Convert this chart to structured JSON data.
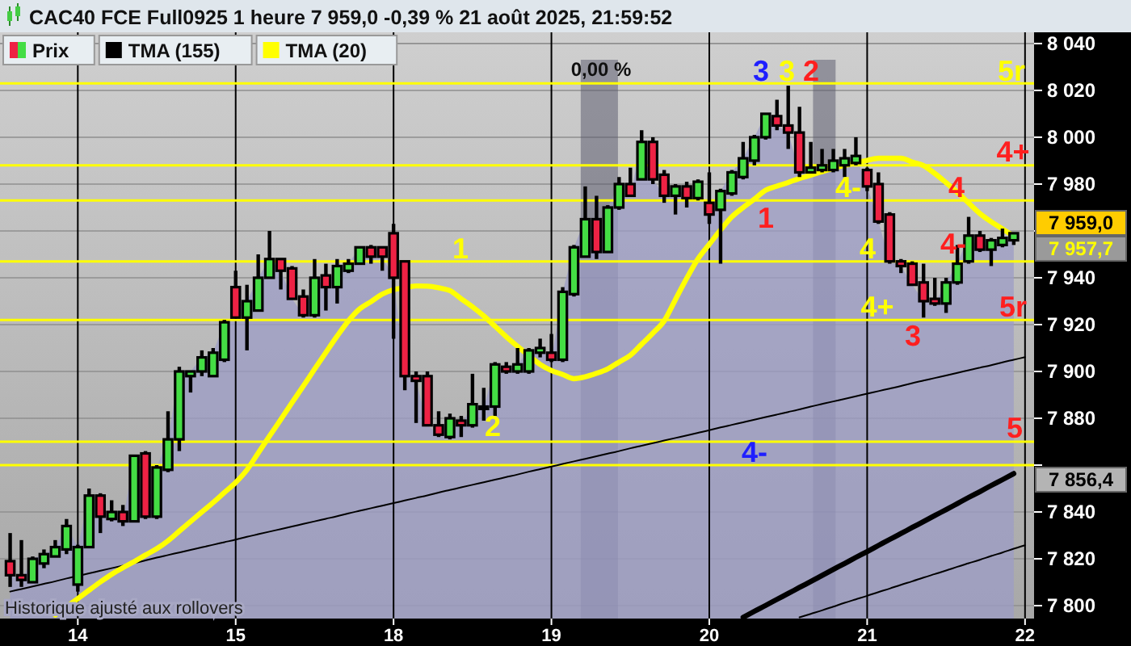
{
  "chart_data": {
    "type": "candlestick",
    "title": "CAC40 FCE Full0925 1 heure 7 959,0 -0,39 % 21 août 2025, 21:59:52",
    "categories": [
      null,
      null,
      null,
      null,
      null,
      null,
      "14",
      null,
      null,
      null,
      null,
      null,
      null,
      null,
      null,
      null,
      null,
      null,
      null,
      null,
      "15",
      null,
      null,
      null,
      null,
      null,
      null,
      null,
      null,
      null,
      null,
      null,
      null,
      null,
      "18",
      null,
      null,
      null,
      null,
      null,
      null,
      null,
      null,
      null,
      null,
      null,
      null,
      null,
      "19",
      null,
      null,
      null,
      null,
      null,
      null,
      null,
      null,
      null,
      null,
      null,
      null,
      null,
      "20",
      null,
      null,
      null,
      null,
      null,
      null,
      null,
      null,
      null,
      null,
      null,
      null,
      null,
      "21",
      null,
      null,
      null,
      null,
      null,
      null,
      null,
      null,
      null,
      null,
      null,
      null,
      null,
      "22"
    ],
    "ylim": [
      7794.5,
      8044.8
    ],
    "yticks": [
      {
        "value": 7800,
        "label": "7 800"
      },
      {
        "value": 7820,
        "label": "7 820"
      },
      {
        "value": 7840,
        "label": "7 840"
      },
      {
        "value": 7860,
        "label": null
      },
      {
        "value": 7880,
        "label": "7 880"
      },
      {
        "value": 7900,
        "label": "7 900"
      },
      {
        "value": 7920,
        "label": "7 920"
      },
      {
        "value": 7940,
        "label": "7 940"
      },
      {
        "value": 7960,
        "label": null
      },
      {
        "value": 7980,
        "label": "7 980"
      },
      {
        "value": 8000,
        "label": "8 000"
      },
      {
        "value": 8020,
        "label": "8 020"
      },
      {
        "value": 8040,
        "label": "8 040"
      }
    ],
    "grid": true,
    "legend": "top left",
    "series": [
      {
        "type": "area",
        "color": "#9c9cc6",
        "values": [
          7813,
          7811,
          7820,
          7822,
          7825,
          7834,
          7825,
          7847,
          7838,
          7840,
          7836,
          7864,
          7838,
          7859,
          7871,
          7900,
          7900,
          7906,
          7908,
          7921,
          7923,
          7930,
          7940,
          7948,
          7943,
          7931,
          7924,
          7940,
          7936,
          7945,
          7946,
          7953,
          7949,
          7949,
          7940,
          7898,
          7896,
          7877,
          7873,
          7880,
          7877,
          7886,
          7884,
          7903,
          7900,
          7903,
          7909,
          7910,
          7905,
          7934,
          7953,
          7965,
          7951,
          7970,
          7980,
          7975,
          7998,
          7982,
          7975,
          7979,
          7974,
          7981,
          7967,
          7977,
          7985,
          7991,
          8000,
          8010,
          8005,
          8002,
          7985,
          7987,
          7988,
          7990,
          7991,
          7992,
          7979,
          7964,
          7947,
          7945,
          7937,
          7930,
          7929,
          7938,
          7946,
          7958,
          7952,
          7956,
          7957,
          7959,
          null
        ]
      },
      {
        "type": "line",
        "color": "#000000",
        "values": [
          7806,
          7807.1,
          7808.2,
          7809.3,
          7810.4,
          7811.6,
          7812.7,
          7813.8,
          7814.9,
          7816,
          7817.1,
          7818.2,
          7819.3,
          7820.5,
          7821.6,
          7822.7,
          7823.8,
          7824.9,
          7826,
          7827.1,
          7828.2,
          7829.4,
          7830.5,
          7831.6,
          7832.7,
          7833.8,
          7834.9,
          7836,
          7837.1,
          7838.2,
          7839.4,
          7840.5,
          7841.6,
          7842.7,
          7843.8,
          7844.9,
          7846,
          7847.1,
          7848.3,
          7849.4,
          7850.5,
          7851.6,
          7852.7,
          7853.8,
          7854.9,
          7856,
          7857.2,
          7858.3,
          7859.4,
          7860.5,
          7861.6,
          7862.7,
          7863.8,
          7864.9,
          7866,
          7867.2,
          7868.3,
          7869.4,
          7870.5,
          7871.6,
          7872.7,
          7873.8,
          7874.9,
          7876.1,
          7877.2,
          7878.3,
          7879.4,
          7880.5,
          7881.6,
          7882.7,
          7883.8,
          7885,
          7886.1,
          7887.2,
          7888.3,
          7889.4,
          7890.5,
          7891.6,
          7892.7,
          7893.8,
          7895,
          7896.1,
          7897.2,
          7898.3,
          7899.4,
          7900.5,
          7901.6,
          7902.7,
          7903.9,
          7905,
          7906.1
        ]
      },
      {
        "type": "line",
        "color": "#000000",
        "values": [
          null,
          null,
          null,
          null,
          null,
          null,
          null,
          null,
          null,
          null,
          null,
          null,
          null,
          null,
          null,
          null,
          null,
          null,
          null,
          null,
          null,
          null,
          null,
          null,
          null,
          null,
          null,
          null,
          null,
          null,
          null,
          null,
          null,
          null,
          null,
          null,
          null,
          null,
          null,
          null,
          null,
          null,
          null,
          null,
          null,
          null,
          null,
          null,
          null,
          null,
          null,
          null,
          null,
          null,
          null,
          null,
          null,
          null,
          null,
          null,
          null,
          null,
          null,
          null,
          null,
          null,
          null,
          null,
          null,
          null,
          7795,
          7796.5,
          7798,
          7799.6,
          7801.2,
          7802.7,
          7804.2,
          7805.8,
          7807.3,
          7808.9,
          7810.4,
          7812,
          7813.5,
          7815,
          7816.6,
          7818.1,
          7819.6,
          7821.2,
          7822.7,
          7824.3,
          7825.8
        ]
      },
      {
        "name": "Prix",
        "ohlc": [
          [
            7819,
            7831,
            7808,
            7813
          ],
          [
            7813,
            7828,
            7808,
            7811
          ],
          [
            7810,
            7821,
            7810,
            7820
          ],
          [
            7818,
            7824,
            7816,
            7822
          ],
          [
            7821,
            7828,
            7821,
            7825
          ],
          [
            7824,
            7837,
            7822,
            7834
          ],
          [
            7809,
            7826,
            7806,
            7825
          ],
          [
            7825,
            7850,
            7825,
            7847
          ],
          [
            7847,
            7848,
            7831,
            7838
          ],
          [
            7837,
            7845,
            7836,
            7840
          ],
          [
            7840,
            7843,
            7834,
            7836
          ],
          [
            7836,
            7864,
            7836,
            7864
          ],
          [
            7865,
            7866,
            7837,
            7838
          ],
          [
            7838,
            7860,
            7837,
            7859
          ],
          [
            7858,
            7883,
            7857,
            7871
          ],
          [
            7871,
            7902,
            7866,
            7900
          ],
          [
            7898,
            7900,
            7891,
            7900
          ],
          [
            7900,
            7909,
            7898,
            7906
          ],
          [
            7898,
            7910,
            7898,
            7908
          ],
          [
            7905,
            7922,
            7904,
            7921
          ],
          [
            7936,
            7943,
            7923,
            7923
          ],
          [
            7923,
            7937,
            7909,
            7930
          ],
          [
            7926,
            7950,
            7926,
            7940
          ],
          [
            7940,
            7960,
            7940,
            7948
          ],
          [
            7948,
            7948,
            7935,
            7943
          ],
          [
            7944,
            7945,
            7931,
            7931
          ],
          [
            7932,
            7935,
            7923,
            7924
          ],
          [
            7924,
            7948,
            7923,
            7940
          ],
          [
            7941,
            7946,
            7926,
            7936
          ],
          [
            7936,
            7948,
            7929,
            7945
          ],
          [
            7943,
            7948,
            7942,
            7946
          ],
          [
            7946,
            7953,
            7946,
            7953
          ],
          [
            7953,
            7954,
            7946,
            7949
          ],
          [
            7953,
            7953,
            7943,
            7949
          ],
          [
            7959,
            7963,
            7914,
            7940
          ],
          [
            7947,
            7947,
            7892,
            7898
          ],
          [
            7898,
            7900,
            7878,
            7896
          ],
          [
            7898,
            7900,
            7877,
            7877
          ],
          [
            7877,
            7883,
            7872,
            7873
          ],
          [
            7872,
            7882,
            7871,
            7880
          ],
          [
            7879,
            7881,
            7872,
            7877
          ],
          [
            7877,
            7899,
            7876,
            7886
          ],
          [
            7885,
            7893,
            7879,
            7884
          ],
          [
            7885,
            7904,
            7881,
            7903
          ],
          [
            7902,
            7904,
            7899,
            7900
          ],
          [
            7900,
            7910,
            7899,
            7903
          ],
          [
            7900,
            7910,
            7899,
            7909
          ],
          [
            7908,
            7914,
            7906,
            7910
          ],
          [
            7908,
            7916,
            7904,
            7905
          ],
          [
            7905,
            7936,
            7904,
            7934
          ],
          [
            7933,
            7954,
            7932,
            7953
          ],
          [
            7949,
            7979,
            7949,
            7965
          ],
          [
            7965,
            7975,
            7948,
            7951
          ],
          [
            7951,
            7971,
            7951,
            7970
          ],
          [
            7970,
            7983,
            7969,
            7980
          ],
          [
            7980,
            7987,
            7975,
            7975
          ],
          [
            7982,
            8003,
            7982,
            7998
          ],
          [
            7998,
            8000,
            7980,
            7982
          ],
          [
            7984,
            7986,
            7972,
            7975
          ],
          [
            7975,
            7980,
            7967,
            7979
          ],
          [
            7979,
            7981,
            7970,
            7974
          ],
          [
            7974,
            7982,
            7973,
            7981
          ],
          [
            7972,
            7985,
            7963,
            7967
          ],
          [
            7969,
            7978,
            7946,
            7977
          ],
          [
            7976,
            7986,
            7975,
            7985
          ],
          [
            7983,
            7998,
            7982,
            7991
          ],
          [
            7990,
            8001,
            7988,
            8000
          ],
          [
            8000,
            8010,
            7999,
            8010
          ],
          [
            8009,
            8016,
            8003,
            8005
          ],
          [
            8005,
            8022,
            7995,
            8002
          ],
          [
            8002,
            8013,
            7983,
            7985
          ],
          [
            7985,
            7998,
            7985,
            7987
          ],
          [
            7986,
            7995,
            7985,
            7988
          ],
          [
            7986,
            7995,
            7985,
            7990
          ],
          [
            7988,
            7995,
            7983,
            7991
          ],
          [
            7989,
            8000,
            7988,
            7992
          ],
          [
            7986,
            7987,
            7977,
            7979
          ],
          [
            7980,
            7985,
            7963,
            7964
          ],
          [
            7967,
            7968,
            7946,
            7947
          ],
          [
            7947,
            7948,
            7942,
            7945
          ],
          [
            7946,
            7947,
            7937,
            7937
          ],
          [
            7938,
            7946,
            7923,
            7930
          ],
          [
            7931,
            7940,
            7928,
            7929
          ],
          [
            7929,
            7940,
            7925,
            7938
          ],
          [
            7938,
            7954,
            7937,
            7946
          ],
          [
            7947,
            7966,
            7946,
            7958
          ],
          [
            7958,
            7960,
            7951,
            7952
          ],
          [
            7952,
            7957,
            7945,
            7956
          ],
          [
            7954,
            7961,
            7953,
            7957
          ],
          [
            7956,
            7959,
            7954,
            7959
          ],
          null
        ]
      },
      {
        "name": "TMA (155)",
        "type": "line",
        "color": "#000000",
        "values": [
          null,
          null,
          null,
          null,
          null,
          null,
          null,
          null,
          null,
          null,
          null,
          null,
          null,
          null,
          null,
          null,
          null,
          null,
          null,
          null,
          null,
          null,
          null,
          null,
          null,
          null,
          null,
          null,
          null,
          null,
          null,
          null,
          null,
          null,
          null,
          null,
          null,
          null,
          null,
          null,
          null,
          null,
          null,
          null,
          null,
          null,
          null,
          null,
          null,
          null,
          null,
          null,
          null,
          null,
          null,
          null,
          null,
          null,
          null,
          null,
          null,
          null,
          null,
          null,
          null,
          7795,
          7797.6,
          7800.1,
          7802.7,
          7805.2,
          7807.8,
          7810.3,
          7812.9,
          7815.5,
          7818,
          7820.6,
          7823.1,
          7825.7,
          7828.3,
          7830.8,
          7833.4,
          7835.9,
          7838.5,
          7841,
          7843.6,
          7846.2,
          7848.7,
          7851.3,
          7853.8,
          7856.4,
          null
        ]
      },
      {
        "name": "TMA (20)",
        "type": "line",
        "color": "#ffff00",
        "values": [
          null,
          null,
          null,
          null,
          7796,
          7799.5,
          7803,
          7806.6,
          7810.1,
          7813.4,
          7816.2,
          7818.8,
          7821.6,
          7824.3,
          7827.7,
          7831.8,
          7835.9,
          7840,
          7844,
          7848.3,
          7852.6,
          7858,
          7865.2,
          7872.4,
          7879.5,
          7886.7,
          7893.8,
          7901,
          7908.1,
          7915.1,
          7921.6,
          7926.7,
          7929.8,
          7933,
          7934.9,
          7935.7,
          7936.5,
          7936.4,
          7935.7,
          7934.5,
          7931,
          7927.6,
          7923.7,
          7919.3,
          7914.8,
          7910.7,
          7906.8,
          7903,
          7900.4,
          7898.7,
          7896.9,
          7897.7,
          7899.2,
          7901.1,
          7904,
          7906.9,
          7911.6,
          7916.4,
          7921.6,
          7930.7,
          7939.8,
          7948.1,
          7954.3,
          7960.4,
          7966,
          7970,
          7973.6,
          7977.4,
          7979.1,
          7980.7,
          7982.4,
          7983.8,
          7985.3,
          7986.7,
          7988,
          7989,
          7990.1,
          7991,
          7991,
          7991,
          7989.4,
          7987.9,
          7984.5,
          7980.6,
          7976.5,
          7971.9,
          7967.4,
          7963.9,
          7960.9,
          7957.7,
          null
        ]
      }
    ],
    "ref_lines": [
      {
        "axis": "y",
        "value": 8023,
        "color": "#ffff00"
      },
      {
        "axis": "y",
        "value": 7988,
        "color": "#ffff00"
      },
      {
        "axis": "y",
        "value": 7973,
        "color": "#ffff00"
      },
      {
        "axis": "y",
        "value": 7947,
        "color": "#ffff00"
      },
      {
        "axis": "y",
        "value": 7922,
        "color": "#ffff00"
      },
      {
        "axis": "y",
        "value": 7870,
        "color": "#ffff00"
      },
      {
        "axis": "y",
        "value": 7860,
        "color": "#ffff00"
      }
    ],
    "annotations": [
      "1",
      "2",
      "3",
      "3",
      "2",
      "1",
      "4-",
      "4",
      "4+",
      "3",
      "4",
      "4-",
      "4+",
      "5r",
      "5r",
      "5",
      "4-",
      "7 959,0",
      "7 957,7",
      "7 856,4",
      "Historique ajusté aux rollovers",
      "0,00 %"
    ]
  }
}
